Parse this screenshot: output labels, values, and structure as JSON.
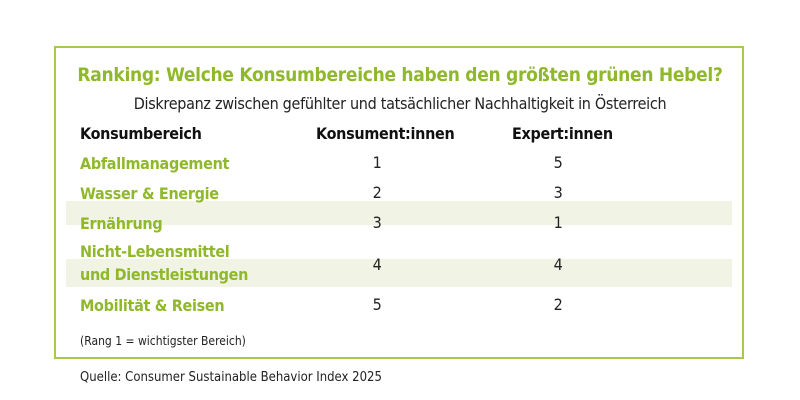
{
  "title": "Ranking: Welche Konsumbereiche haben den größten grünen Hebel?",
  "subtitle": "Diskrepanz zwischen gefühlter und tatsächlicher Nachhaltigkeit in Österreich",
  "headers": [
    "Konsumbereich",
    "Konsument:innen",
    "Expert:innen"
  ],
  "rows": [
    {
      "category": "Abfallmanagement",
      "consumers": "1",
      "experts": "5"
    },
    {
      "category": "Wasser & Energie",
      "consumers": "2",
      "experts": "3"
    },
    {
      "category": "Ernährung",
      "consumers": "3",
      "experts": "1"
    },
    {
      "category": "Nicht-Lebensmittel\nund Dienstleistungen",
      "consumers": "4",
      "experts": "4"
    },
    {
      "category": "Mobilität & Reisen",
      "consumers": "5",
      "experts": "2"
    }
  ],
  "note": "(Rang 1 = wichtigster Bereich)",
  "source": "Quelle: Consumer Sustainable Behavior Index 2025",
  "colors": {
    "accent": "#8fb82a",
    "band": "#f1f4e4"
  }
}
